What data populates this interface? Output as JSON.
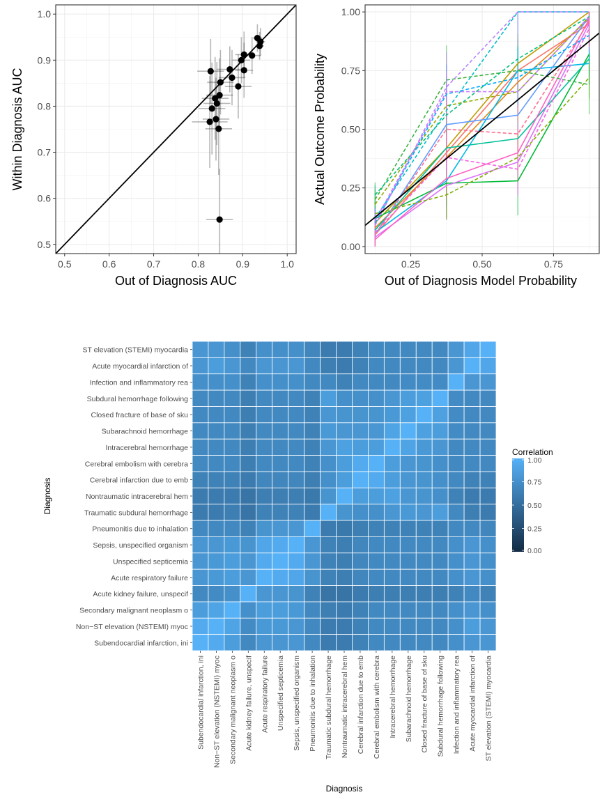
{
  "chart_data": [
    {
      "type": "scatter",
      "xlabel": "Out of Diagnosis AUC",
      "ylabel": "Within Diagnosis AUC",
      "xlim": [
        0.48,
        1.02
      ],
      "ylim": [
        0.48,
        1.02
      ],
      "x_ticks": [
        "0.5",
        "0.6",
        "0.7",
        "0.8",
        "0.9",
        "1.0"
      ],
      "y_ticks": [
        "0.5",
        "0.6",
        "0.7",
        "0.8",
        "0.9",
        "1.0"
      ],
      "reference_line": "y = x",
      "grid": true,
      "points": [
        {
          "x": 0.828,
          "y": 0.876,
          "xerr": 0.03,
          "yerr": 0.07
        },
        {
          "x": 0.831,
          "y": 0.795,
          "xerr": 0.03,
          "yerr": 0.1
        },
        {
          "x": 0.826,
          "y": 0.766,
          "xerr": 0.04,
          "yerr": 0.1
        },
        {
          "x": 0.838,
          "y": 0.817,
          "xerr": 0.03,
          "yerr": 0.09
        },
        {
          "x": 0.842,
          "y": 0.806,
          "xerr": 0.03,
          "yerr": 0.09
        },
        {
          "x": 0.848,
          "y": 0.824,
          "xerr": 0.03,
          "yerr": 0.08
        },
        {
          "x": 0.85,
          "y": 0.852,
          "xerr": 0.03,
          "yerr": 0.07
        },
        {
          "x": 0.84,
          "y": 0.772,
          "xerr": 0.03,
          "yerr": 0.09
        },
        {
          "x": 0.846,
          "y": 0.751,
          "xerr": 0.03,
          "yerr": 0.1
        },
        {
          "x": 0.848,
          "y": 0.554,
          "xerr": 0.03,
          "yerr": 0.11
        },
        {
          "x": 0.871,
          "y": 0.88,
          "xerr": 0.03,
          "yerr": 0.05
        },
        {
          "x": 0.876,
          "y": 0.862,
          "xerr": 0.03,
          "yerr": 0.06
        },
        {
          "x": 0.89,
          "y": 0.843,
          "xerr": 0.03,
          "yerr": 0.07
        },
        {
          "x": 0.897,
          "y": 0.9,
          "xerr": 0.02,
          "yerr": 0.05
        },
        {
          "x": 0.903,
          "y": 0.912,
          "xerr": 0.02,
          "yerr": 0.05
        },
        {
          "x": 0.903,
          "y": 0.878,
          "xerr": 0.02,
          "yerr": 0.06
        },
        {
          "x": 0.921,
          "y": 0.91,
          "xerr": 0.02,
          "yerr": 0.04
        },
        {
          "x": 0.933,
          "y": 0.948,
          "xerr": 0.01,
          "yerr": 0.03
        },
        {
          "x": 0.938,
          "y": 0.931,
          "xerr": 0.01,
          "yerr": 0.03
        },
        {
          "x": 0.94,
          "y": 0.94,
          "xerr": 0.01,
          "yerr": 0.03
        }
      ]
    },
    {
      "type": "line",
      "xlabel": "Out of Diagnosis Model Probability",
      "ylabel": "Actual Outcome Probability",
      "xlim": [
        0.09,
        0.91
      ],
      "ylim": [
        -0.03,
        1.03
      ],
      "x_ticks": [
        "0.25",
        "0.50",
        "0.75"
      ],
      "y_ticks": [
        "0.00",
        "0.25",
        "0.50",
        "0.75",
        "1.00"
      ],
      "x": [
        0.125,
        0.375,
        0.625,
        0.875
      ],
      "reference_line": "y = x",
      "grid": true,
      "series": [
        {
          "color": "#F8766D",
          "dash": false,
          "values": [
            0.05,
            0.4,
            0.75,
            0.95
          ]
        },
        {
          "color": "#E7861B",
          "dash": false,
          "values": [
            0.08,
            0.38,
            0.7,
            0.97
          ]
        },
        {
          "color": "#C09B00",
          "dash": false,
          "values": [
            0.1,
            0.42,
            0.78,
            1.0
          ]
        },
        {
          "color": "#00BA38",
          "dash": false,
          "values": [
            0.12,
            0.27,
            0.28,
            0.82
          ]
        },
        {
          "color": "#00C19A",
          "dash": false,
          "values": [
            0.07,
            0.42,
            0.46,
            0.8
          ]
        },
        {
          "color": "#00B8E7",
          "dash": false,
          "values": [
            0.06,
            0.28,
            0.75,
            0.78
          ]
        },
        {
          "color": "#619CFF",
          "dash": false,
          "values": [
            0.05,
            0.52,
            0.56,
            0.98
          ]
        },
        {
          "color": "#DB72FB",
          "dash": false,
          "values": [
            0.04,
            0.26,
            0.36,
            0.95
          ]
        },
        {
          "color": "#FF61C3",
          "dash": false,
          "values": [
            0.03,
            0.29,
            0.4,
            0.97
          ]
        },
        {
          "color": "#7CAE00",
          "dash": true,
          "values": [
            0.14,
            0.22,
            0.38,
            0.72
          ]
        },
        {
          "color": "#8FAA00",
          "dash": true,
          "values": [
            0.18,
            0.6,
            0.66,
            0.98
          ]
        },
        {
          "color": "#3CB341",
          "dash": true,
          "values": [
            0.2,
            0.71,
            0.75,
            0.69
          ]
        },
        {
          "color": "#00BF7D",
          "dash": true,
          "values": [
            0.22,
            0.56,
            0.8,
            0.98
          ]
        },
        {
          "color": "#00BFC4",
          "dash": true,
          "values": [
            0.12,
            0.58,
            1.0,
            1.0
          ]
        },
        {
          "color": "#00A9FF",
          "dash": true,
          "values": [
            0.1,
            0.65,
            0.72,
            0.9
          ]
        },
        {
          "color": "#B983FF",
          "dash": true,
          "values": [
            0.09,
            0.68,
            1.0,
            1.0
          ]
        },
        {
          "color": "#C77CFF",
          "dash": true,
          "values": [
            0.11,
            0.66,
            0.66,
            0.98
          ]
        },
        {
          "color": "#F564E3",
          "dash": true,
          "values": [
            0.06,
            0.38,
            0.33,
            0.93
          ]
        },
        {
          "color": "#FF6C91",
          "dash": true,
          "values": [
            0.05,
            0.5,
            0.48,
            0.96
          ]
        }
      ]
    },
    {
      "type": "heatmap",
      "xlabel": "Diagnosis",
      "ylabel": "Diagnosis",
      "legend_title": "Correlation",
      "legend_ticks": [
        "1.00",
        "0.75",
        "0.50",
        "0.25",
        "0.00"
      ],
      "value_range": [
        0,
        1
      ],
      "x_labels": [
        "Subendocardial infarction, ini",
        "Non−ST elevation (NSTEMI) myoc",
        "Secondary malignant neoplasm o",
        "Acute kidney failure, unspecif",
        "Acute respiratory failure",
        "Unspecified septicemia",
        "Sepsis, unspecified organism",
        "Pneumonitis due to inhalation",
        "Traumatic subdural hemorrhage",
        "Nontraumatic intracerebral hem",
        "Cerebral infarction due to emb",
        "Cerebral embolism with cerebra",
        "Intracerebral hemorrhage",
        "Subarachnoid hemorrhage",
        "Closed fracture of base of sku",
        "Subdural hemorrhage following",
        "Infection and inflammatory rea",
        "Acute myocardial infarction of",
        "ST elevation (STEMI) myocardia"
      ],
      "y_labels_top_to_bottom": [
        "ST elevation (STEMI) myocardia",
        "Acute myocardial infarction of",
        "Infection and inflammatory rea",
        "Subdural hemorrhage following ",
        "Closed fracture of base of sku",
        "Subarachnoid hemorrhage",
        "Intracerebral hemorrhage",
        "Cerebral embolism with cerebra",
        "Cerebral infarction due to emb",
        "Nontraumatic intracerebral hem",
        "Traumatic subdural hemorrhage",
        "Pneumonitis due to inhalation",
        "Sepsis, unspecified organism",
        "Unspecified septicemia",
        "Acute respiratory failure",
        "Acute kidney failure, unspecif",
        "Secondary malignant neoplasm o",
        "Non−ST elevation (NSTEMI) myoc",
        "Subendocardial infarction, ini"
      ],
      "matrix_rows_in_x_label_order": [
        [
          1.0,
          0.95,
          0.85,
          0.7,
          0.8,
          0.8,
          0.8,
          0.7,
          0.6,
          0.6,
          0.65,
          0.7,
          0.7,
          0.7,
          0.7,
          0.7,
          0.75,
          0.8,
          0.8
        ],
        [
          0.95,
          1.0,
          0.9,
          0.72,
          0.82,
          0.82,
          0.8,
          0.7,
          0.6,
          0.6,
          0.65,
          0.7,
          0.7,
          0.7,
          0.7,
          0.7,
          0.75,
          0.85,
          0.8
        ],
        [
          0.85,
          0.9,
          1.0,
          0.75,
          0.85,
          0.85,
          0.82,
          0.7,
          0.62,
          0.6,
          0.65,
          0.7,
          0.7,
          0.7,
          0.7,
          0.7,
          0.75,
          0.8,
          0.75
        ],
        [
          0.7,
          0.72,
          0.75,
          1.0,
          0.8,
          0.8,
          0.78,
          0.65,
          0.55,
          0.55,
          0.6,
          0.62,
          0.62,
          0.62,
          0.62,
          0.62,
          0.65,
          0.7,
          0.65
        ],
        [
          0.8,
          0.82,
          0.85,
          0.8,
          1.0,
          0.95,
          0.92,
          0.78,
          0.65,
          0.62,
          0.68,
          0.7,
          0.7,
          0.7,
          0.7,
          0.7,
          0.75,
          0.8,
          0.75
        ],
        [
          0.8,
          0.82,
          0.85,
          0.8,
          0.95,
          1.0,
          0.95,
          0.8,
          0.65,
          0.62,
          0.68,
          0.7,
          0.7,
          0.7,
          0.7,
          0.7,
          0.75,
          0.8,
          0.75
        ],
        [
          0.8,
          0.8,
          0.82,
          0.78,
          0.92,
          0.95,
          1.0,
          0.8,
          0.65,
          0.62,
          0.68,
          0.7,
          0.7,
          0.7,
          0.7,
          0.7,
          0.75,
          0.8,
          0.75
        ],
        [
          0.7,
          0.7,
          0.7,
          0.65,
          0.78,
          0.8,
          0.8,
          1.0,
          0.6,
          0.58,
          0.62,
          0.65,
          0.65,
          0.65,
          0.65,
          0.65,
          0.7,
          0.7,
          0.68
        ],
        [
          0.6,
          0.6,
          0.62,
          0.55,
          0.65,
          0.65,
          0.65,
          0.6,
          1.0,
          0.78,
          0.75,
          0.75,
          0.8,
          0.82,
          0.8,
          0.85,
          0.7,
          0.62,
          0.6
        ],
        [
          0.6,
          0.6,
          0.6,
          0.55,
          0.62,
          0.62,
          0.62,
          0.58,
          0.78,
          1.0,
          0.85,
          0.85,
          0.88,
          0.8,
          0.78,
          0.75,
          0.65,
          0.6,
          0.6
        ],
        [
          0.65,
          0.65,
          0.65,
          0.6,
          0.68,
          0.68,
          0.68,
          0.62,
          0.75,
          0.85,
          1.0,
          0.95,
          0.85,
          0.8,
          0.78,
          0.75,
          0.7,
          0.65,
          0.65
        ],
        [
          0.7,
          0.7,
          0.7,
          0.62,
          0.7,
          0.7,
          0.7,
          0.65,
          0.75,
          0.85,
          0.95,
          1.0,
          0.85,
          0.8,
          0.78,
          0.75,
          0.7,
          0.7,
          0.7
        ],
        [
          0.7,
          0.7,
          0.7,
          0.62,
          0.7,
          0.7,
          0.7,
          0.65,
          0.8,
          0.88,
          0.85,
          0.85,
          1.0,
          0.9,
          0.82,
          0.8,
          0.7,
          0.7,
          0.7
        ],
        [
          0.7,
          0.7,
          0.7,
          0.62,
          0.7,
          0.7,
          0.7,
          0.65,
          0.82,
          0.8,
          0.8,
          0.8,
          0.9,
          1.0,
          0.88,
          0.85,
          0.72,
          0.7,
          0.7
        ],
        [
          0.7,
          0.7,
          0.7,
          0.62,
          0.7,
          0.7,
          0.7,
          0.65,
          0.8,
          0.78,
          0.78,
          0.78,
          0.82,
          0.88,
          1.0,
          0.88,
          0.72,
          0.7,
          0.7
        ],
        [
          0.7,
          0.7,
          0.7,
          0.62,
          0.7,
          0.7,
          0.7,
          0.65,
          0.85,
          0.75,
          0.75,
          0.75,
          0.8,
          0.85,
          0.88,
          1.0,
          0.72,
          0.7,
          0.7
        ],
        [
          0.75,
          0.75,
          0.75,
          0.65,
          0.75,
          0.75,
          0.75,
          0.7,
          0.7,
          0.65,
          0.7,
          0.7,
          0.7,
          0.72,
          0.72,
          0.72,
          1.0,
          0.8,
          0.8
        ],
        [
          0.8,
          0.85,
          0.8,
          0.7,
          0.8,
          0.8,
          0.8,
          0.7,
          0.62,
          0.6,
          0.65,
          0.7,
          0.7,
          0.7,
          0.7,
          0.7,
          0.8,
          1.0,
          0.92
        ],
        [
          0.8,
          0.8,
          0.75,
          0.65,
          0.75,
          0.75,
          0.75,
          0.68,
          0.6,
          0.6,
          0.65,
          0.7,
          0.7,
          0.7,
          0.7,
          0.7,
          0.8,
          0.92,
          1.0
        ]
      ]
    }
  ]
}
